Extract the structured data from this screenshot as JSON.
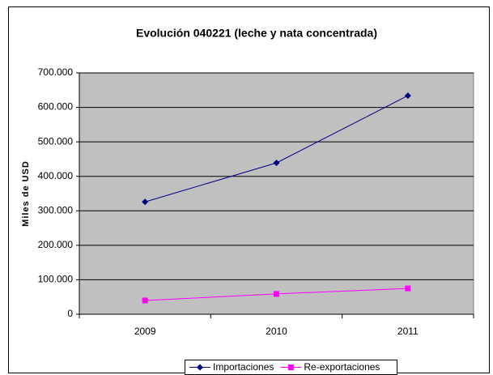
{
  "chart_data": {
    "type": "line",
    "title": "Evolución 040221 (leche y nata concentrada)",
    "y_label": "Miles de USD",
    "categories": [
      "2009",
      "2010",
      "2011"
    ],
    "series": [
      {
        "name": "Importaciones",
        "color": "#000080",
        "marker": "diamond",
        "values": [
          326000,
          439000,
          634000
        ]
      },
      {
        "name": "Re-exportaciones",
        "color": "#ff00ff",
        "marker": "square",
        "values": [
          40000,
          59000,
          75000
        ]
      }
    ],
    "ylim": [
      0,
      700000
    ],
    "yticks": [
      0,
      {
        "value": 100000,
        "label": "100.000"
      },
      {
        "value": 200000,
        "label": "200.000"
      },
      {
        "value": 300000,
        "label": "300.000"
      },
      {
        "value": 400000,
        "label": "400.000"
      },
      {
        "value": 500000,
        "label": "500.000"
      },
      {
        "value": 600000,
        "label": "600.000"
      },
      {
        "value": 700000,
        "label": "700.000"
      }
    ],
    "grid": true,
    "legend": "bottom"
  }
}
